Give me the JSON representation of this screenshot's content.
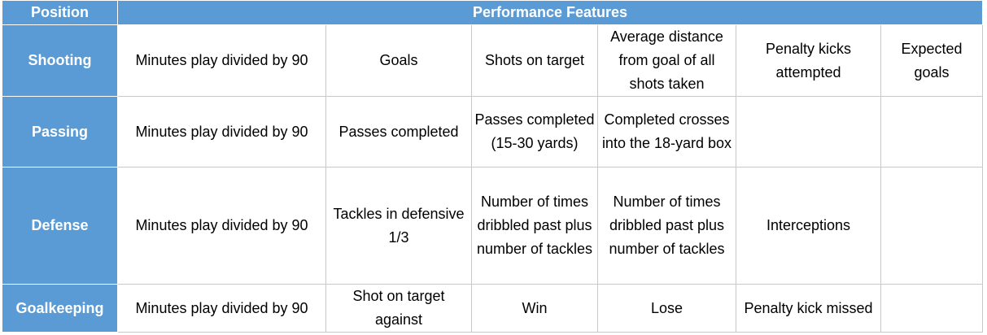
{
  "header": {
    "position": "Position",
    "features": "Performance Features"
  },
  "rows": [
    {
      "position": "Shooting",
      "cells": [
        "Minutes play divided by 90",
        "Goals",
        "Shots on target",
        "Average distance from goal of all shots taken",
        "Penalty kicks attempted",
        "Expected goals"
      ]
    },
    {
      "position": "Passing",
      "cells": [
        "Minutes play divided by 90",
        "Passes completed",
        "Passes completed (15-30 yards)",
        "Completed crosses into the 18-yard box",
        "",
        ""
      ]
    },
    {
      "position": "Defense",
      "cells": [
        "Minutes play divided by 90",
        "Tackles in defensive 1/3",
        "Number of times dribbled past plus number of tackles",
        "Number of times dribbled past plus number of tackles",
        "Interceptions",
        ""
      ]
    },
    {
      "position": "Goalkeeping",
      "cells": [
        "Minutes play divided by 90",
        "Shot on target against",
        "Win",
        "Lose",
        "Penalty kick missed",
        ""
      ]
    }
  ]
}
